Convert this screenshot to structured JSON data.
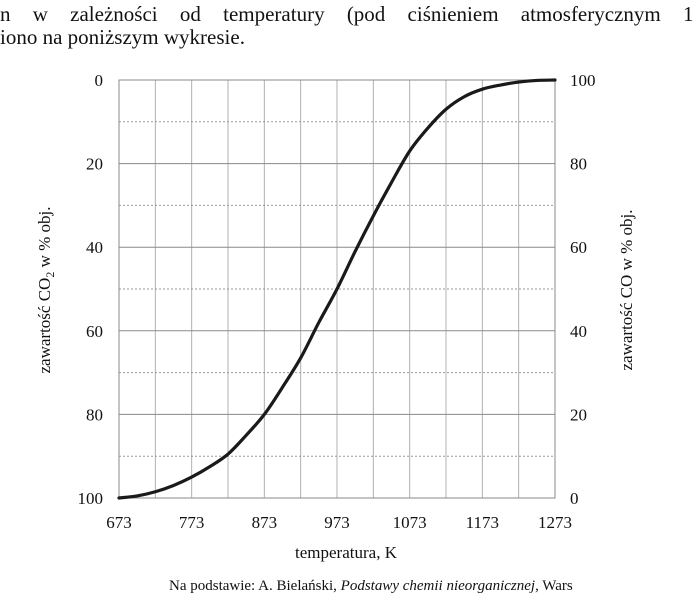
{
  "intro_text": {
    "line1": "n w zależności od temperatury (pod ciśnieniem atmosferycznym 1",
    "line2": "iono na poniższym wykresie."
  },
  "source_note": {
    "prefix": "Na podstawie: A. Bielański, ",
    "title": "Podstawy chemii nieorganicznej",
    "suffix": ", Wars"
  },
  "chart_data": {
    "type": "line",
    "xlabel": "temperatura, K",
    "ylabel_left": {
      "main": "zawartość CO",
      "sub": "2",
      "rest": " w % obj."
    },
    "ylabel_right": "zawartość CO w % obj.",
    "xlim": [
      673,
      1273
    ],
    "ylim_left": [
      0,
      100
    ],
    "ylim_right": [
      0,
      100
    ],
    "left_axis_inverted": true,
    "x_ticks": [
      673,
      773,
      873,
      973,
      1073,
      1173,
      1273
    ],
    "x_grid": [
      673,
      723,
      773,
      823,
      873,
      923,
      973,
      1023,
      1073,
      1123,
      1173,
      1223,
      1273
    ],
    "y_ticks_left": [
      0,
      20,
      40,
      60,
      80,
      100
    ],
    "y_ticks_right": [
      100,
      80,
      60,
      40,
      20,
      0
    ],
    "grid": true,
    "series": [
      {
        "color": "#1a1a1a",
        "x": [
          673,
          698,
          723,
          748,
          773,
          798,
          823,
          848,
          873,
          898,
          923,
          948,
          973,
          998,
          1023,
          1048,
          1073,
          1098,
          1123,
          1148,
          1173,
          1198,
          1223,
          1248,
          1273
        ],
        "y_CO": [
          0,
          0.5,
          1.5,
          3,
          5,
          7.5,
          10.5,
          15,
          20,
          26.5,
          33.5,
          42,
          50,
          59,
          67.5,
          75.5,
          83,
          88.5,
          93,
          96,
          97.8,
          98.8,
          99.5,
          99.9,
          100
        ]
      }
    ]
  }
}
